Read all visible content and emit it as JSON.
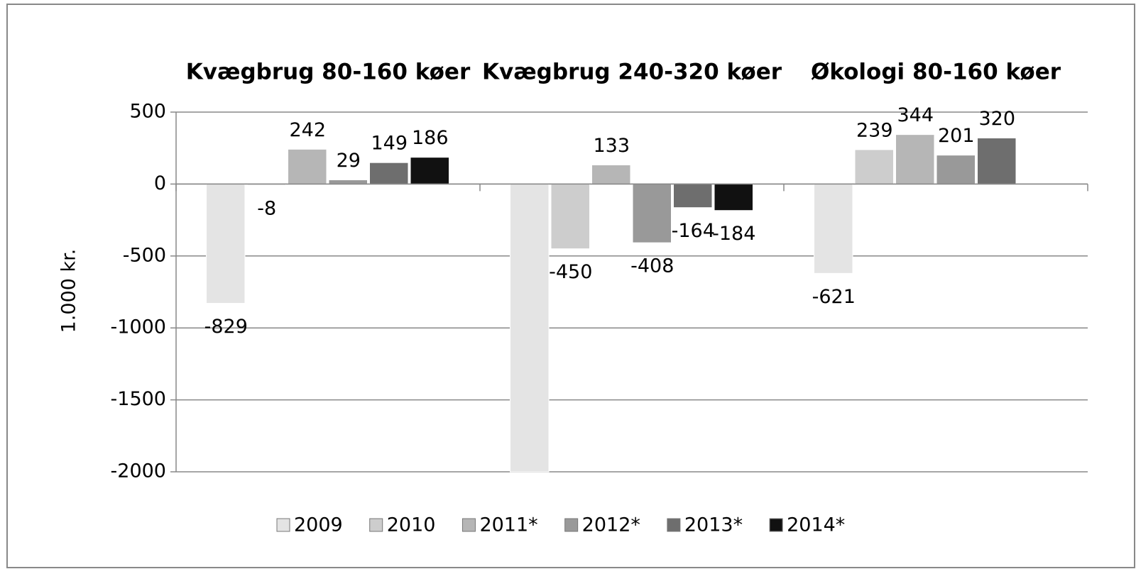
{
  "chart_data": {
    "type": "bar",
    "categories": [
      "Kvægbrug 80-160 køer",
      "Kvægbrug 240-320 køer",
      "Økologi 80-160 køer"
    ],
    "y_label": "1.000 kr.",
    "series": [
      {
        "name": "2009",
        "color": "#e4e4e4",
        "values": [
          -829,
          -2000,
          -621
        ],
        "value_labels": [
          "-829",
          null,
          "-621"
        ]
      },
      {
        "name": "2010",
        "color": "#cdcdcd",
        "values": [
          -8,
          -450,
          239
        ]
      },
      {
        "name": "2011*",
        "color": "#b6b6b6",
        "values": [
          242,
          133,
          344
        ]
      },
      {
        "name": "2012*",
        "color": "#999999",
        "values": [
          29,
          -408,
          201
        ]
      },
      {
        "name": "2013*",
        "color": "#6e6e6e",
        "values": [
          149,
          -164,
          320
        ]
      },
      {
        "name": "2014*",
        "color": "#111111",
        "values": [
          186,
          -184,
          null
        ]
      }
    ],
    "ylim": [
      -2000,
      500
    ],
    "yticks": [
      500,
      0,
      -500,
      -1000,
      -1500,
      -2000
    ],
    "grid": true,
    "legend": "bottom"
  }
}
